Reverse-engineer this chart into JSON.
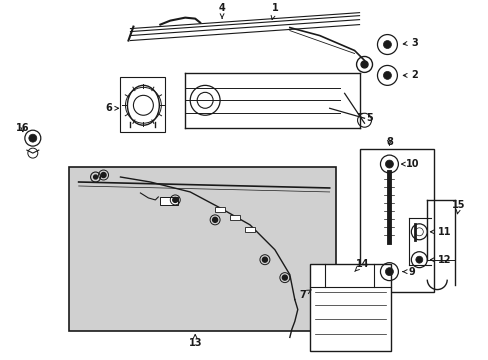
{
  "bg_color": "#ffffff",
  "box_bg": "#d4d4d4",
  "line_color": "#1a1a1a",
  "fig_width": 4.89,
  "fig_height": 3.6,
  "dpi": 100
}
